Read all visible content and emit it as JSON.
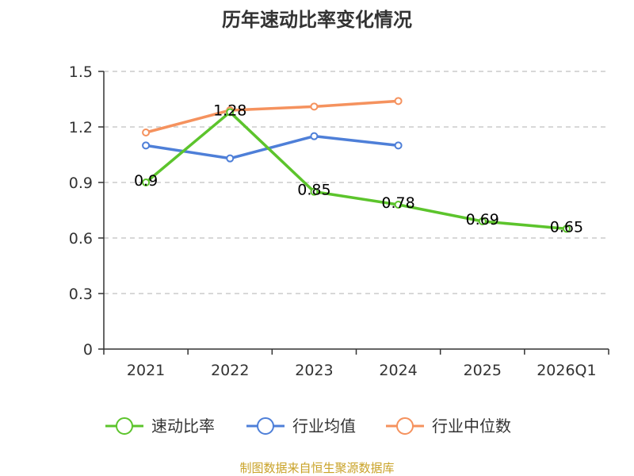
{
  "chart_data": {
    "type": "line",
    "title": "历年速动比率变化情况",
    "categories": [
      "2021",
      "2022",
      "2023",
      "2024",
      "2025",
      "2026Q1"
    ],
    "ylim": [
      0,
      1.5
    ],
    "yticks": [
      "0",
      "0.3",
      "0.6",
      "0.9",
      "1.2",
      "1.5"
    ],
    "grid": true,
    "legend_position": "bottom",
    "series": [
      {
        "name": "速动比率",
        "color": "#5cc42c",
        "values": [
          0.9,
          1.28,
          0.85,
          0.78,
          0.69,
          0.65
        ],
        "labels": [
          "0.9",
          "1.28",
          "0.85",
          "0.78",
          "0.69",
          "0.65"
        ],
        "show_labels": true
      },
      {
        "name": "行业均值",
        "color": "#4e7fd8",
        "values": [
          1.1,
          1.03,
          1.15,
          1.1,
          null,
          null
        ],
        "show_labels": false
      },
      {
        "name": "行业中位数",
        "color": "#f5925e",
        "values": [
          1.17,
          1.29,
          1.31,
          1.34,
          null,
          null
        ],
        "show_labels": false
      }
    ],
    "source": "制图数据来自恒生聚源数据库"
  }
}
